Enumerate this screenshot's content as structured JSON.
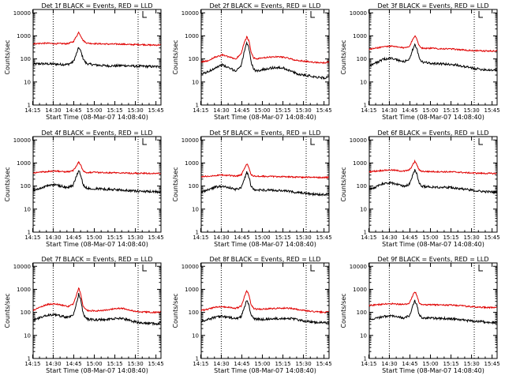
{
  "colors": {
    "events": "#000000",
    "lld": "#e00000",
    "axis": "#000000"
  },
  "chart_data": [
    {
      "type": "line",
      "title": "Det 1f BLACK = Events, RED = LLD",
      "xlabel": "Start Time (08-Mar-07 14:08:40)",
      "ylabel": "Counts/sec",
      "xticks": [
        "14:15",
        "14:30",
        "14:45",
        "15:00",
        "15:15",
        "15:30",
        "15:45"
      ],
      "yticks": [
        "1",
        "10",
        "100",
        "1000",
        "10000"
      ],
      "ylog": true,
      "ylim": [
        1,
        14000
      ],
      "xlim_min": [
        6.67,
        100
      ],
      "vlines_min": [
        21.3,
        83.3
      ],
      "x": [
        6.67,
        12,
        17,
        22,
        27,
        32,
        36,
        38,
        40,
        41.5,
        43,
        45,
        47,
        52,
        57,
        62,
        67,
        72,
        77,
        82,
        87,
        92,
        97,
        100
      ],
      "series": [
        {
          "role": "events",
          "values": [
            60,
            62,
            61,
            60,
            58,
            58,
            75,
            150,
            320,
            210,
            110,
            68,
            60,
            55,
            52,
            50,
            50,
            52,
            50,
            48,
            48,
            47,
            46,
            50
          ]
        },
        {
          "role": "lld",
          "values": [
            460,
            470,
            480,
            460,
            460,
            460,
            560,
            900,
            1450,
            1000,
            650,
            520,
            480,
            460,
            450,
            440,
            440,
            440,
            420,
            420,
            420,
            400,
            400,
            410
          ]
        }
      ]
    },
    {
      "type": "line",
      "title": "Det 2f BLACK = Events, RED = LLD",
      "xlabel": "Start Time (08-Mar-07 14:08:40)",
      "ylabel": "Counts/sec",
      "xticks": [
        "14:15",
        "14:30",
        "14:45",
        "15:00",
        "15:15",
        "15:30",
        "15:45"
      ],
      "yticks": [
        "1",
        "10",
        "100",
        "1000",
        "10000"
      ],
      "ylog": true,
      "ylim": [
        1,
        14000
      ],
      "xlim_min": [
        6.67,
        100
      ],
      "vlines_min": [
        21.3,
        83.3
      ],
      "x": [
        6.67,
        12,
        17,
        22,
        27,
        32,
        36,
        38,
        40,
        41.5,
        43,
        45,
        47,
        52,
        57,
        62,
        67,
        72,
        77,
        82,
        87,
        92,
        97,
        100
      ],
      "series": [
        {
          "role": "events",
          "values": [
            22,
            28,
            42,
            55,
            40,
            30,
            55,
            200,
            480,
            300,
            80,
            35,
            30,
            35,
            40,
            42,
            40,
            30,
            22,
            20,
            18,
            16,
            15,
            17
          ]
        },
        {
          "role": "lld",
          "values": [
            72,
            85,
            120,
            150,
            120,
            100,
            180,
            500,
            900,
            600,
            200,
            110,
            100,
            110,
            120,
            125,
            120,
            100,
            85,
            80,
            72,
            70,
            68,
            75
          ]
        }
      ]
    },
    {
      "type": "line",
      "title": "Det 3f BLACK = Events, RED = LLD",
      "xlabel": "Start Time (08-Mar-07 14:08:40)",
      "ylabel": "Counts/sec",
      "xticks": [
        "14:15",
        "14:30",
        "14:45",
        "15:00",
        "15:15",
        "15:30",
        "15:45"
      ],
      "yticks": [
        "1",
        "10",
        "100",
        "1000",
        "10000"
      ],
      "ylog": true,
      "ylim": [
        1,
        14000
      ],
      "xlim_min": [
        6.67,
        100
      ],
      "vlines_min": [
        21.3,
        83.3
      ],
      "x": [
        6.67,
        12,
        17,
        22,
        27,
        32,
        36,
        38,
        40,
        41.5,
        43,
        45,
        47,
        52,
        57,
        62,
        67,
        72,
        77,
        82,
        87,
        92,
        97,
        100
      ],
      "series": [
        {
          "role": "events",
          "values": [
            50,
            70,
            95,
            110,
            90,
            75,
            100,
            220,
            420,
            260,
            110,
            75,
            70,
            65,
            62,
            60,
            58,
            52,
            45,
            40,
            36,
            34,
            33,
            34
          ]
        },
        {
          "role": "lld",
          "values": [
            260,
            300,
            340,
            360,
            330,
            300,
            360,
            620,
            1050,
            720,
            380,
            300,
            290,
            290,
            280,
            275,
            270,
            255,
            240,
            230,
            225,
            220,
            220,
            225
          ]
        }
      ]
    },
    {
      "type": "line",
      "title": "Det 4f BLACK = Events, RED = LLD",
      "xlabel": "Start Time (08-Mar-07 14:08:40)",
      "ylabel": "Counts/sec",
      "xticks": [
        "14:15",
        "14:30",
        "14:45",
        "15:00",
        "15:15",
        "15:30",
        "15:45"
      ],
      "yticks": [
        "1",
        "10",
        "100",
        "1000",
        "10000"
      ],
      "ylog": true,
      "ylim": [
        1,
        14000
      ],
      "xlim_min": [
        6.67,
        100
      ],
      "vlines_min": [
        21.3,
        83.3
      ],
      "x": [
        6.67,
        12,
        17,
        22,
        27,
        32,
        36,
        38,
        40,
        41.5,
        43,
        45,
        47,
        52,
        57,
        62,
        67,
        72,
        77,
        82,
        87,
        92,
        97,
        100
      ],
      "series": [
        {
          "role": "events",
          "values": [
            65,
            80,
            105,
            115,
            100,
            85,
            110,
            250,
            480,
            300,
            120,
            85,
            80,
            78,
            75,
            72,
            70,
            68,
            64,
            60,
            58,
            57,
            56,
            58
          ]
        },
        {
          "role": "lld",
          "values": [
            380,
            400,
            430,
            450,
            430,
            410,
            470,
            720,
            1150,
            780,
            470,
            400,
            390,
            390,
            385,
            380,
            380,
            375,
            365,
            360,
            355,
            355,
            350,
            355
          ]
        }
      ]
    },
    {
      "type": "line",
      "title": "Det 5f BLACK = Events, RED = LLD",
      "xlabel": "Start Time (08-Mar-07 14:08:40)",
      "ylabel": "Counts/sec",
      "xticks": [
        "14:15",
        "14:30",
        "14:45",
        "15:00",
        "15:15",
        "15:30",
        "15:45"
      ],
      "yticks": [
        "1",
        "10",
        "100",
        "1000",
        "10000"
      ],
      "ylog": true,
      "ylim": [
        1,
        14000
      ],
      "xlim_min": [
        6.67,
        100
      ],
      "vlines_min": [
        21.3,
        83.3
      ],
      "x": [
        6.67,
        12,
        17,
        22,
        27,
        32,
        36,
        38,
        40,
        41.5,
        43,
        45,
        47,
        52,
        57,
        62,
        67,
        72,
        77,
        82,
        87,
        92,
        97,
        100
      ],
      "series": [
        {
          "role": "events",
          "values": [
            55,
            70,
            90,
            100,
            85,
            70,
            90,
            200,
            400,
            250,
            100,
            70,
            68,
            68,
            66,
            64,
            62,
            58,
            52,
            48,
            45,
            43,
            42,
            45
          ]
        },
        {
          "role": "lld",
          "values": [
            250,
            270,
            290,
            300,
            290,
            270,
            310,
            550,
            950,
            640,
            320,
            270,
            265,
            265,
            260,
            258,
            255,
            250,
            245,
            240,
            238,
            236,
            235,
            240
          ]
        }
      ]
    },
    {
      "type": "line",
      "title": "Det 6f BLACK = Events, RED = LLD",
      "xlabel": "Start Time (08-Mar-07 14:08:40)",
      "ylabel": "Counts/sec",
      "xticks": [
        "14:15",
        "14:30",
        "14:45",
        "15:00",
        "15:15",
        "15:30",
        "15:45"
      ],
      "yticks": [
        "1",
        "10",
        "100",
        "1000",
        "10000"
      ],
      "ylog": true,
      "ylim": [
        1,
        14000
      ],
      "xlim_min": [
        6.67,
        100
      ],
      "vlines_min": [
        21.3,
        83.3
      ],
      "x": [
        6.67,
        12,
        17,
        22,
        27,
        32,
        36,
        38,
        40,
        41.5,
        43,
        45,
        47,
        52,
        57,
        62,
        67,
        72,
        77,
        82,
        87,
        92,
        97,
        100
      ],
      "series": [
        {
          "role": "events",
          "values": [
            70,
            95,
            130,
            140,
            120,
            100,
            120,
            260,
            520,
            320,
            130,
            100,
            95,
            92,
            90,
            88,
            85,
            80,
            72,
            66,
            60,
            57,
            55,
            56
          ]
        },
        {
          "role": "lld",
          "values": [
            420,
            450,
            480,
            500,
            470,
            440,
            500,
            760,
            1200,
            820,
            500,
            440,
            430,
            425,
            420,
            415,
            410,
            400,
            380,
            370,
            360,
            355,
            350,
            355
          ]
        }
      ]
    },
    {
      "type": "line",
      "title": "Det 7f BLACK = Events, RED = LLD",
      "xlabel": "Start Time (08-Mar-07 14:08:40)",
      "ylabel": "Counts/sec",
      "xticks": [
        "14:15",
        "14:30",
        "14:45",
        "15:00",
        "15:15",
        "15:30",
        "15:45"
      ],
      "yticks": [
        "1",
        "10",
        "100",
        "1000",
        "10000"
      ],
      "ylog": true,
      "ylim": [
        1,
        14000
      ],
      "xlim_min": [
        6.67,
        100
      ],
      "vlines_min": [
        21.3,
        83.3
      ],
      "x": [
        6.67,
        12,
        17,
        22,
        27,
        32,
        36,
        38,
        40,
        41.5,
        43,
        45,
        47,
        52,
        57,
        62,
        67,
        72,
        77,
        82,
        87,
        92,
        97,
        100
      ],
      "series": [
        {
          "role": "events",
          "values": [
            45,
            60,
            75,
            80,
            70,
            60,
            80,
            200,
            650,
            350,
            100,
            55,
            50,
            48,
            48,
            50,
            55,
            55,
            45,
            38,
            34,
            33,
            32,
            35
          ]
        },
        {
          "role": "lld",
          "values": [
            120,
            170,
            220,
            240,
            210,
            180,
            230,
            500,
            1150,
            600,
            200,
            130,
            120,
            115,
            120,
            130,
            150,
            150,
            125,
            110,
            105,
            102,
            100,
            105
          ]
        }
      ]
    },
    {
      "type": "line",
      "title": "Det 8f BLACK = Events, RED = LLD",
      "xlabel": "Start Time (08-Mar-07 14:08:40)",
      "ylabel": "Counts/sec",
      "xticks": [
        "14:15",
        "14:30",
        "14:45",
        "15:00",
        "15:15",
        "15:30",
        "15:45"
      ],
      "yticks": [
        "1",
        "10",
        "100",
        "1000",
        "10000"
      ],
      "ylog": true,
      "ylim": [
        1,
        14000
      ],
      "xlim_min": [
        6.67,
        100
      ],
      "vlines_min": [
        21.3,
        83.3
      ],
      "x": [
        6.67,
        12,
        17,
        22,
        27,
        32,
        36,
        38,
        40,
        41.5,
        43,
        45,
        47,
        52,
        57,
        62,
        67,
        72,
        77,
        82,
        87,
        92,
        97,
        100
      ],
      "series": [
        {
          "role": "events",
          "values": [
            42,
            50,
            62,
            68,
            60,
            52,
            68,
            160,
            330,
            200,
            80,
            55,
            50,
            50,
            52,
            54,
            56,
            54,
            48,
            42,
            38,
            36,
            35,
            37
          ]
        },
        {
          "role": "lld",
          "values": [
            120,
            140,
            170,
            180,
            165,
            150,
            190,
            460,
            870,
            550,
            220,
            150,
            140,
            140,
            145,
            150,
            155,
            150,
            135,
            120,
            110,
            105,
            100,
            105
          ]
        }
      ]
    },
    {
      "type": "line",
      "title": "Det 9f BLACK = Events, RED = LLD",
      "xlabel": "Start Time (08-Mar-07 14:08:40)",
      "ylabel": "Counts/sec",
      "xticks": [
        "14:15",
        "14:30",
        "14:45",
        "15:00",
        "15:15",
        "15:30",
        "15:45"
      ],
      "yticks": [
        "1",
        "10",
        "100",
        "1000",
        "10000"
      ],
      "ylog": true,
      "ylim": [
        1,
        14000
      ],
      "xlim_min": [
        6.67,
        100
      ],
      "vlines_min": [
        21.3,
        83.3
      ],
      "x": [
        6.67,
        12,
        17,
        22,
        27,
        32,
        36,
        38,
        40,
        41.5,
        43,
        45,
        47,
        52,
        57,
        62,
        67,
        72,
        77,
        82,
        87,
        92,
        97,
        100
      ],
      "series": [
        {
          "role": "events",
          "values": [
            48,
            56,
            66,
            70,
            64,
            58,
            72,
            160,
            320,
            200,
            82,
            60,
            56,
            56,
            55,
            54,
            53,
            50,
            45,
            42,
            40,
            38,
            37,
            38
          ]
        },
        {
          "role": "lld",
          "values": [
            200,
            215,
            230,
            240,
            230,
            220,
            250,
            480,
            820,
            540,
            260,
            220,
            215,
            215,
            212,
            210,
            208,
            200,
            185,
            175,
            168,
            165,
            162,
            165
          ]
        }
      ]
    }
  ]
}
